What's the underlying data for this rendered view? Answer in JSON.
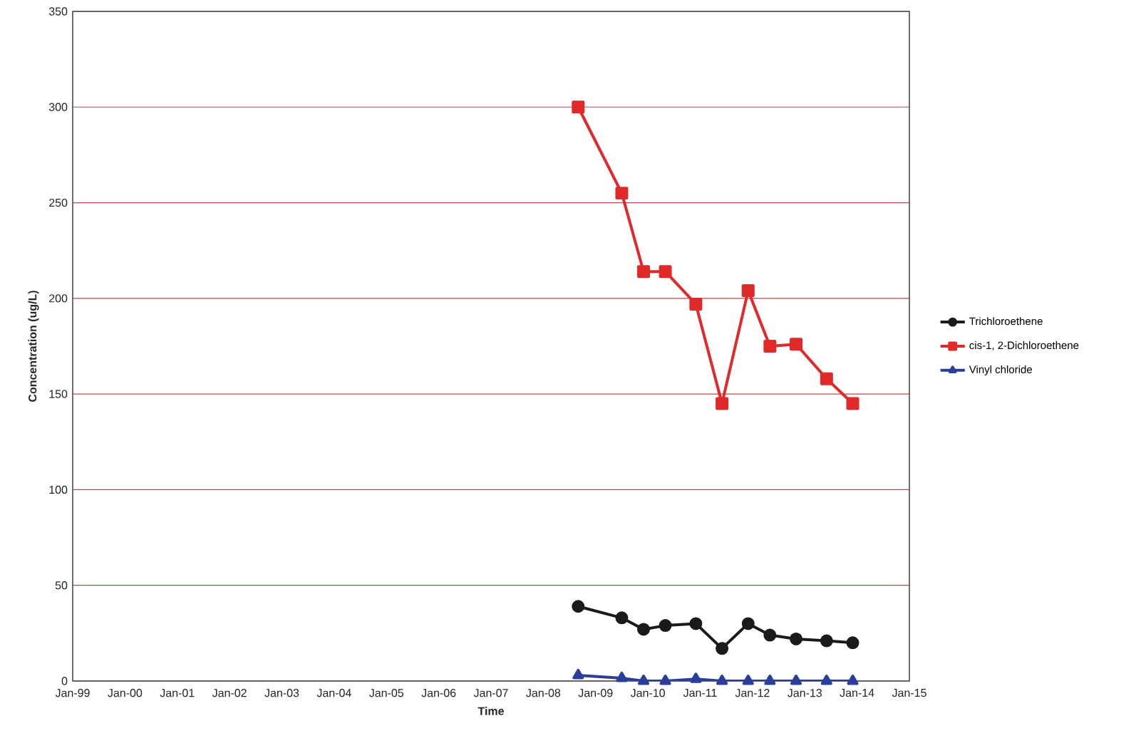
{
  "chart_data": {
    "type": "line",
    "xlabel": "Time",
    "ylabel": "Concentration (ug/L)",
    "x": [
      "2008-09",
      "2009-07",
      "2009-12",
      "2010-05",
      "2010-12",
      "2011-06",
      "2011-12",
      "2012-05",
      "2012-11",
      "2013-06",
      "2013-12"
    ],
    "series": [
      {
        "name": "Trichloroethene",
        "color": "#1a1a1a",
        "marker": "circle",
        "values": [
          39,
          33,
          27,
          29,
          30,
          17,
          30,
          24,
          22,
          21,
          20
        ]
      },
      {
        "name": "cis-1, 2-Dichloroethene",
        "color": "#e02a2a",
        "marker": "square",
        "values": [
          300,
          255,
          214,
          214,
          197,
          145,
          204,
          175,
          176,
          158,
          145
        ]
      },
      {
        "name": "Vinyl chloride",
        "color": "#2a3f9a",
        "marker": "triangle",
        "values": [
          3,
          1.5,
          0,
          0,
          1,
          0,
          0,
          0,
          0,
          0,
          0
        ]
      }
    ],
    "xlim": [
      "1999-01",
      "2015-01"
    ],
    "xticks": [
      {
        "value": "1999-01",
        "label": "Jan-99"
      },
      {
        "value": "2000-01",
        "label": "Jan-00"
      },
      {
        "value": "2001-01",
        "label": "Jan-01"
      },
      {
        "value": "2002-01",
        "label": "Jan-02"
      },
      {
        "value": "2003-01",
        "label": "Jan-03"
      },
      {
        "value": "2004-01",
        "label": "Jan-04"
      },
      {
        "value": "2005-01",
        "label": "Jan-05"
      },
      {
        "value": "2006-01",
        "label": "Jan-06"
      },
      {
        "value": "2007-01",
        "label": "Jan-07"
      },
      {
        "value": "2008-01",
        "label": "Jan-08"
      },
      {
        "value": "2009-01",
        "label": "Jan-09"
      },
      {
        "value": "2010-01",
        "label": "Jan-10"
      },
      {
        "value": "2011-01",
        "label": "Jan-11"
      },
      {
        "value": "2012-01",
        "label": "Jan-12"
      },
      {
        "value": "2013-01",
        "label": "Jan-13"
      },
      {
        "value": "2014-01",
        "label": "Jan-14"
      },
      {
        "value": "2015-01",
        "label": "Jan-15"
      }
    ],
    "ylim": [
      0,
      350
    ],
    "yticks": [
      0,
      50,
      100,
      150,
      200,
      250,
      300,
      350
    ],
    "grid": "y",
    "legend": "right"
  }
}
